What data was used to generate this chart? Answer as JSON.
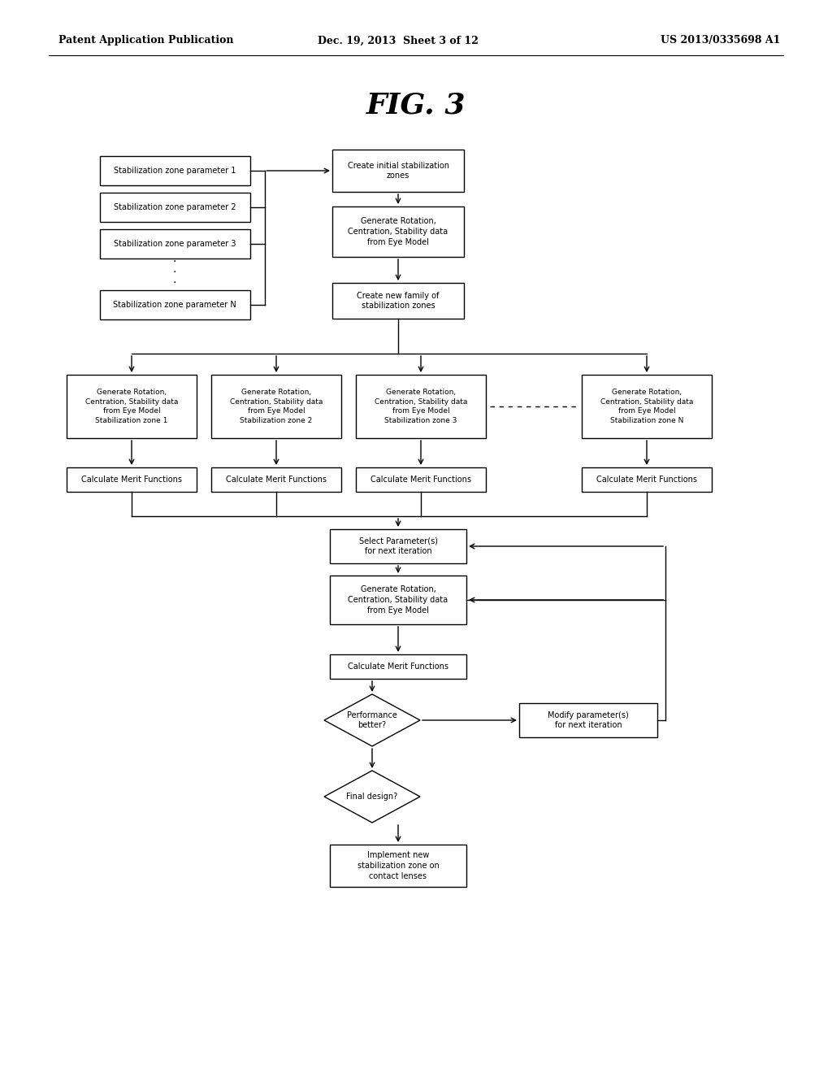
{
  "title": "FIG. 3",
  "header_left": "Patent Application Publication",
  "header_center": "Dec. 19, 2013  Sheet 3 of 12",
  "header_right": "US 2013/0335698 A1",
  "background_color": "#ffffff",
  "text_color": "#000000",
  "fig_width": 10.24,
  "fig_height": 13.2,
  "dpi": 100
}
